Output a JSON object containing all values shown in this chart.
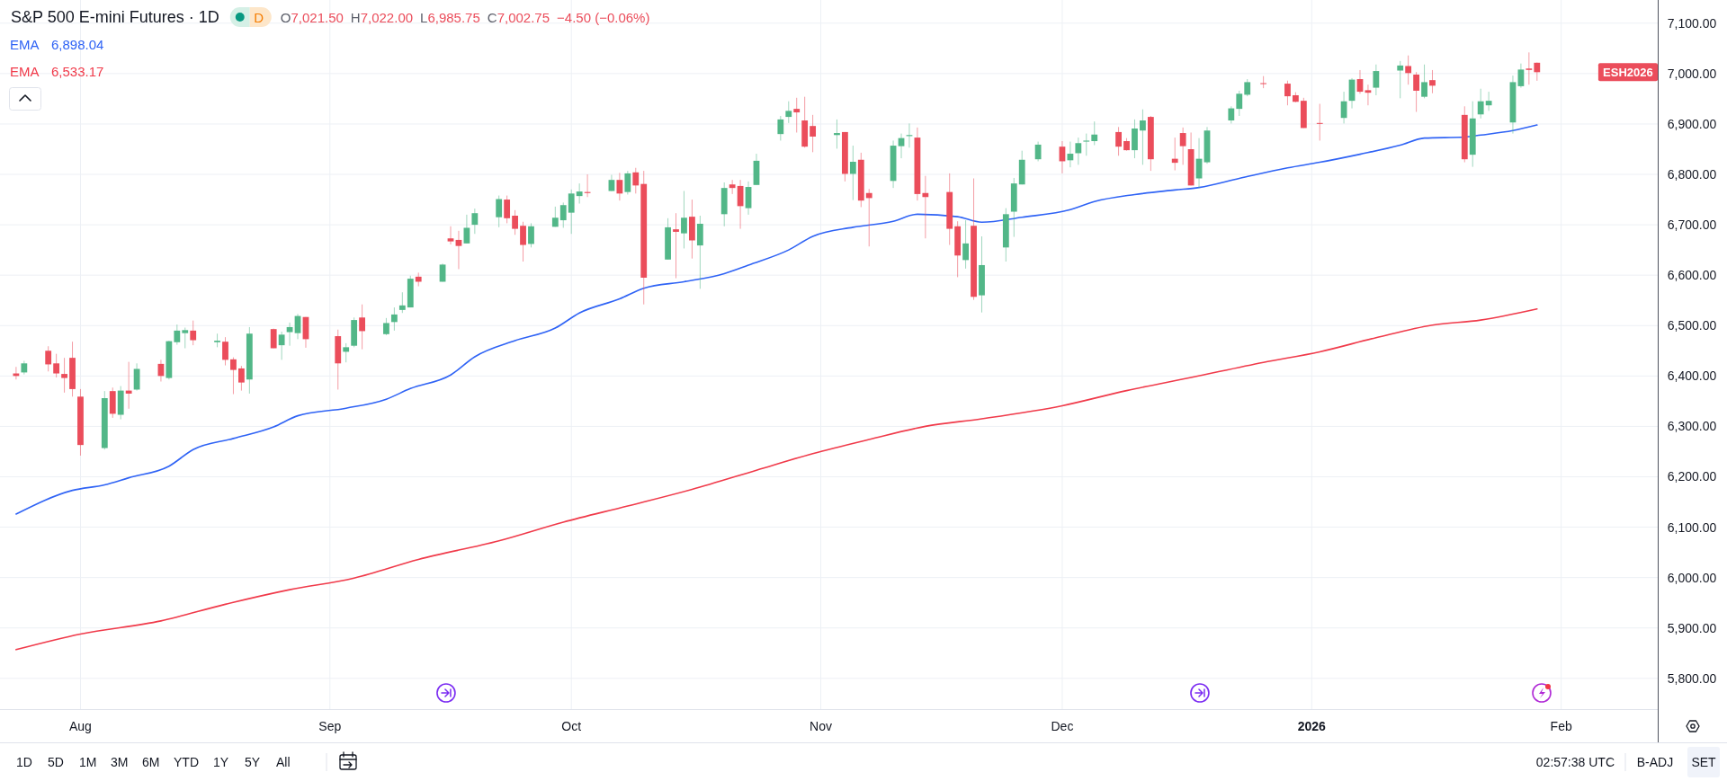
{
  "chart_data": {
    "type": "candlestick",
    "title": "S&P 500 E-mini Futures · 1D",
    "x": [
      "2025-07-24",
      "2025-07-25",
      "2025-07-28",
      "2025-07-29",
      "2025-07-30",
      "2025-07-31",
      "2025-08-01",
      "2025-08-04",
      "2025-08-05",
      "2025-08-06",
      "2025-08-07",
      "2025-08-08",
      "2025-08-11",
      "2025-08-12",
      "2025-08-13",
      "2025-08-14",
      "2025-08-15",
      "2025-08-18",
      "2025-08-19",
      "2025-08-20",
      "2025-08-21",
      "2025-08-22",
      "2025-08-25",
      "2025-08-26",
      "2025-08-27",
      "2025-08-28",
      "2025-08-29",
      "2025-09-02",
      "2025-09-03",
      "2025-09-04",
      "2025-09-05",
      "2025-09-08",
      "2025-09-09",
      "2025-09-10",
      "2025-09-11",
      "2025-09-12",
      "2025-09-15",
      "2025-09-16",
      "2025-09-17",
      "2025-09-18",
      "2025-09-19",
      "2025-09-22",
      "2025-09-23",
      "2025-09-24",
      "2025-09-25",
      "2025-09-26",
      "2025-09-29",
      "2025-09-30",
      "2025-10-01",
      "2025-10-02",
      "2025-10-03",
      "2025-10-06",
      "2025-10-07",
      "2025-10-08",
      "2025-10-09",
      "2025-10-10",
      "2025-10-13",
      "2025-10-14",
      "2025-10-15",
      "2025-10-16",
      "2025-10-17",
      "2025-10-20",
      "2025-10-21",
      "2025-10-22",
      "2025-10-23",
      "2025-10-24",
      "2025-10-27",
      "2025-10-28",
      "2025-10-29",
      "2025-10-30",
      "2025-10-31",
      "2025-11-03",
      "2025-11-04",
      "2025-11-05",
      "2025-11-06",
      "2025-11-07",
      "2025-11-10",
      "2025-11-11",
      "2025-11-12",
      "2025-11-13",
      "2025-11-14",
      "2025-11-17",
      "2025-11-18",
      "2025-11-19",
      "2025-11-20",
      "2025-11-21",
      "2025-11-24",
      "2025-11-25",
      "2025-11-26",
      "2025-11-28",
      "2025-12-01",
      "2025-12-02",
      "2025-12-03",
      "2025-12-04",
      "2025-12-05",
      "2025-12-08",
      "2025-12-09",
      "2025-12-10",
      "2025-12-11",
      "2025-12-12",
      "2025-12-15",
      "2025-12-16",
      "2025-12-17",
      "2025-12-18",
      "2025-12-19",
      "2025-12-22",
      "2025-12-23",
      "2025-12-24",
      "2025-12-26",
      "2025-12-29",
      "2025-12-30",
      "2025-12-31",
      "2026-01-02",
      "2026-01-05",
      "2026-01-06",
      "2026-01-07",
      "2026-01-08",
      "2026-01-09",
      "2026-01-12",
      "2026-01-13",
      "2026-01-14",
      "2026-01-15",
      "2026-01-16",
      "2026-01-20",
      "2026-01-21",
      "2026-01-22",
      "2026-01-23",
      "2026-01-26",
      "2026-01-27",
      "2026-01-28",
      "2026-01-29"
    ],
    "ohlc": [
      [
        6405,
        6418,
        6393,
        6400
      ],
      [
        6407,
        6430,
        6403,
        6425
      ],
      [
        6450,
        6459,
        6409,
        6423
      ],
      [
        6425,
        6444,
        6397,
        6405
      ],
      [
        6404,
        6436,
        6367,
        6396
      ],
      [
        6436,
        6468,
        6359,
        6374
      ],
      [
        6359,
        6374,
        6242,
        6263
      ],
      [
        6257,
        6370,
        6254,
        6356
      ],
      [
        6370,
        6377,
        6317,
        6325
      ],
      [
        6323,
        6380,
        6314,
        6371
      ],
      [
        6371,
        6428,
        6335,
        6365
      ],
      [
        6373,
        6425,
        6371,
        6414
      ],
      [
        6424,
        6432,
        6389,
        6400
      ],
      [
        6396,
        6470,
        6393,
        6469
      ],
      [
        6467,
        6502,
        6462,
        6490
      ],
      [
        6485,
        6496,
        6455,
        6491
      ],
      [
        6490,
        6510,
        6461,
        6471
      ],
      [
        6467,
        6484,
        6457,
        6470
      ],
      [
        6468,
        6477,
        6421,
        6432
      ],
      [
        6433,
        6437,
        6364,
        6412
      ],
      [
        6415,
        6420,
        6371,
        6387
      ],
      [
        6393,
        6497,
        6365,
        6484
      ],
      [
        6493,
        6494,
        6455,
        6455
      ],
      [
        6461,
        6488,
        6432,
        6482
      ],
      [
        6487,
        6506,
        6460,
        6497
      ],
      [
        6485,
        6523,
        6473,
        6519
      ],
      [
        6517,
        6517,
        6456,
        6473
      ],
      [
        6479,
        6492,
        6373,
        6425
      ],
      [
        6448,
        6465,
        6427,
        6457
      ],
      [
        6460,
        6516,
        6457,
        6511
      ],
      [
        6516,
        6542,
        6453,
        6489
      ],
      [
        6483,
        6515,
        6481,
        6505
      ],
      [
        6507,
        6536,
        6490,
        6522
      ],
      [
        6531,
        6566,
        6525,
        6540
      ],
      [
        6536,
        6599,
        6536,
        6593
      ],
      [
        6597,
        6605,
        6578,
        6587
      ],
      [
        6587,
        6623,
        6587,
        6621
      ],
      [
        6673,
        6697,
        6661,
        6667
      ],
      [
        6670,
        6688,
        6612,
        6658
      ],
      [
        6663,
        6720,
        6663,
        6694
      ],
      [
        6700,
        6732,
        6682,
        6723
      ],
      [
        6715,
        6758,
        6695,
        6751
      ],
      [
        6750,
        6758,
        6703,
        6713
      ],
      [
        6718,
        6729,
        6680,
        6692
      ],
      [
        6698,
        6706,
        6627,
        6660
      ],
      [
        6662,
        6703,
        6655,
        6697
      ],
      [
        6696,
        6736,
        6696,
        6714
      ],
      [
        6709,
        6744,
        6694,
        6739
      ],
      [
        6724,
        6770,
        6682,
        6762
      ],
      [
        6757,
        6782,
        6742,
        6766
      ],
      [
        6765,
        6800,
        6755,
        6763
      ],
      [
        6767,
        6799,
        6767,
        6789
      ],
      [
        6789,
        6803,
        6748,
        6762
      ],
      [
        6765,
        6807,
        6760,
        6802
      ],
      [
        6804,
        6813,
        6762,
        6778
      ],
      [
        6781,
        6807,
        6542,
        6595
      ],
      [
        6631,
        6713,
        6631,
        6695
      ],
      [
        6691,
        6723,
        6594,
        6686
      ],
      [
        6683,
        6767,
        6653,
        6714
      ],
      [
        6716,
        6750,
        6633,
        6669
      ],
      [
        6659,
        6718,
        6573,
        6702
      ],
      [
        6721,
        6784,
        6697,
        6773
      ],
      [
        6780,
        6789,
        6761,
        6773
      ],
      [
        6777,
        6789,
        6692,
        6737
      ],
      [
        6733,
        6786,
        6720,
        6775
      ],
      [
        6779,
        6841,
        6779,
        6827
      ],
      [
        6880,
        6916,
        6867,
        6909
      ],
      [
        6914,
        6945,
        6902,
        6926
      ],
      [
        6930,
        6952,
        6883,
        6923
      ],
      [
        6907,
        6954,
        6853,
        6855
      ],
      [
        6896,
        6918,
        6844,
        6875
      ],
      [
        6878,
        6909,
        6851,
        6882
      ],
      [
        6884,
        6884,
        6786,
        6801
      ],
      [
        6801,
        6857,
        6749,
        6825
      ],
      [
        6829,
        6843,
        6735,
        6748
      ],
      [
        6763,
        6771,
        6657,
        6753
      ],
      [
        6787,
        6867,
        6773,
        6857
      ],
      [
        6856,
        6881,
        6832,
        6872
      ],
      [
        6876,
        6901,
        6853,
        6878
      ],
      [
        6873,
        6893,
        6748,
        6761
      ],
      [
        6763,
        6797,
        6673,
        6755
      ],
      [
        6765,
        6802,
        6660,
        6692
      ],
      [
        6697,
        6707,
        6596,
        6639
      ],
      [
        6630,
        6709,
        6613,
        6663
      ],
      [
        6698,
        6792,
        6551,
        6557
      ],
      [
        6560,
        6677,
        6526,
        6620
      ],
      [
        6655,
        6733,
        6627,
        6721
      ],
      [
        6726,
        6793,
        6676,
        6782
      ],
      [
        6780,
        6847,
        6780,
        6829
      ],
      [
        6830,
        6865,
        6826,
        6859
      ],
      [
        6855,
        6866,
        6802,
        6826
      ],
      [
        6828,
        6865,
        6814,
        6841
      ],
      [
        6842,
        6873,
        6819,
        6862
      ],
      [
        6865,
        6881,
        6837,
        6867
      ],
      [
        6866,
        6905,
        6858,
        6879
      ],
      [
        6884,
        6894,
        6837,
        6855
      ],
      [
        6866,
        6872,
        6847,
        6848
      ],
      [
        6848,
        6909,
        6832,
        6891
      ],
      [
        6887,
        6929,
        6819,
        6907
      ],
      [
        6914,
        6916,
        6807,
        6830
      ],
      [
        6831,
        6873,
        6808,
        6823
      ],
      [
        6882,
        6893,
        6819,
        6856
      ],
      [
        6850,
        6883,
        6778,
        6778
      ],
      [
        6792,
        6872,
        6773,
        6831
      ],
      [
        6824,
        6894,
        6821,
        6887
      ],
      [
        6907,
        6935,
        6901,
        6931
      ],
      [
        6930,
        6966,
        6916,
        6960
      ],
      [
        6958,
        6989,
        6955,
        6983
      ],
      [
        6981,
        6995,
        6971,
        6980
      ],
      [
        6980,
        6986,
        6937,
        6955
      ],
      [
        6957,
        6963,
        6943,
        6944
      ],
      [
        6946,
        6952,
        6892,
        6892
      ],
      [
        6902,
        6940,
        6867,
        6901
      ],
      [
        6912,
        6964,
        6901,
        6945
      ],
      [
        6946,
        6991,
        6931,
        6988
      ],
      [
        6989,
        7007,
        6960,
        6964
      ],
      [
        6967,
        6978,
        6937,
        6962
      ],
      [
        6972,
        7018,
        6957,
        7005
      ],
      [
        7006,
        7025,
        6951,
        7016
      ],
      [
        7015,
        7036,
        6978,
        7001
      ],
      [
        6998,
        7003,
        6924,
        6966
      ],
      [
        6954,
        7018,
        6951,
        6983
      ],
      [
        6987,
        7007,
        6961,
        6976
      ],
      [
        6918,
        6935,
        6824,
        6830
      ],
      [
        6839,
        6945,
        6815,
        6911
      ],
      [
        6919,
        6970,
        6911,
        6945
      ],
      [
        6937,
        6964,
        6926,
        6946
      ],
      [
        6903,
        6996,
        6881,
        6983
      ],
      [
        6975,
        7020,
        6972,
        7008
      ],
      [
        7010,
        7042,
        6978,
        7007.25
      ],
      [
        7021.5,
        7022,
        6985.75,
        7002.75
      ]
    ],
    "colors": [
      "#eb4d5b",
      "#52b788",
      "#eb4d5b",
      "#eb4d5b",
      "#eb4d5b",
      "#eb4d5b",
      "#eb4d5b",
      "#52b788",
      "#eb4d5b",
      "#52b788",
      "#eb4d5b",
      "#52b788",
      "#eb4d5b",
      "#52b788",
      "#52b788",
      "#52b788",
      "#eb4d5b",
      "#52b788",
      "#eb4d5b",
      "#eb4d5b",
      "#eb4d5b",
      "#52b788",
      "#eb4d5b",
      "#52b788",
      "#52b788",
      "#52b788",
      "#eb4d5b",
      "#eb4d5b",
      "#52b788",
      "#52b788",
      "#eb4d5b",
      "#52b788",
      "#52b788",
      "#52b788",
      "#52b788",
      "#eb4d5b",
      "#52b788",
      "#eb4d5b",
      "#eb4d5b",
      "#52b788",
      "#52b788",
      "#52b788",
      "#eb4d5b",
      "#eb4d5b",
      "#eb4d5b",
      "#52b788",
      "#52b788",
      "#52b788",
      "#52b788",
      "#52b788",
      "#eb4d5b",
      "#52b788",
      "#eb4d5b",
      "#52b788",
      "#eb4d5b",
      "#eb4d5b",
      "#52b788",
      "#eb4d5b",
      "#52b788",
      "#eb4d5b",
      "#52b788",
      "#52b788",
      "#eb4d5b",
      "#eb4d5b",
      "#52b788",
      "#52b788",
      "#52b788",
      "#52b788",
      "#eb4d5b",
      "#eb4d5b",
      "#eb4d5b",
      "#52b788",
      "#eb4d5b",
      "#52b788",
      "#eb4d5b",
      "#eb4d5b",
      "#52b788",
      "#52b788",
      "#52b788",
      "#eb4d5b",
      "#eb4d5b",
      "#eb4d5b",
      "#eb4d5b",
      "#52b788",
      "#eb4d5b",
      "#52b788",
      "#52b788",
      "#52b788",
      "#52b788",
      "#52b788",
      "#eb4d5b",
      "#52b788",
      "#52b788",
      "#52b788",
      "#52b788",
      "#eb4d5b",
      "#eb4d5b",
      "#52b788",
      "#52b788",
      "#eb4d5b",
      "#eb4d5b",
      "#eb4d5b",
      "#eb4d5b",
      "#52b788",
      "#52b788",
      "#52b788",
      "#52b788",
      "#52b788",
      "#eb4d5b",
      "#eb4d5b",
      "#eb4d5b",
      "#eb4d5b",
      "#eb4d5b",
      "#52b788",
      "#52b788",
      "#eb4d5b",
      "#eb4d5b",
      "#52b788",
      "#52b788",
      "#eb4d5b",
      "#eb4d5b",
      "#52b788",
      "#eb4d5b",
      "#eb4d5b",
      "#52b788",
      "#52b788",
      "#52b788",
      "#52b788",
      "#52b788",
      "#eb4d5b",
      "#eb4d5b"
    ],
    "series": [
      {
        "type": "line",
        "name": "EMA",
        "color": "#2f63f5",
        "x": [
          "2025-07-24",
          "2025-07-31",
          "2025-08-04",
          "2025-08-07",
          "2025-08-12",
          "2025-08-15",
          "2025-08-20",
          "2025-08-25",
          "2025-08-28",
          "2025-09-03",
          "2025-09-08",
          "2025-09-11",
          "2025-09-16",
          "2025-09-19",
          "2025-09-24",
          "2025-09-29",
          "2025-10-02",
          "2025-10-07",
          "2025-10-10",
          "2025-10-15",
          "2025-10-20",
          "2025-10-23",
          "2025-10-28",
          "2025-10-31",
          "2025-11-05",
          "2025-11-10",
          "2025-11-13",
          "2025-11-18",
          "2025-11-21",
          "2025-11-26",
          "2025-12-02",
          "2025-12-05",
          "2025-12-10",
          "2025-12-15",
          "2025-12-18",
          "2025-12-23",
          "2025-12-29",
          "2026-01-02",
          "2026-01-07",
          "2026-01-12",
          "2026-01-15",
          "2026-01-20",
          "2026-01-22",
          "2026-01-26",
          "2026-01-29"
        ],
        "values": [
          6126,
          6173,
          6184,
          6198,
          6221,
          6254,
          6276,
          6299,
          6321,
          6336,
          6354,
          6375,
          6402,
          6438,
          6470,
          6495,
          6525,
          6553,
          6574,
          6587,
          6603,
          6620,
          6650,
          6677,
          6695,
          6707,
          6721,
          6716,
          6705,
          6715,
          6730,
          6746,
          6760,
          6769,
          6774,
          6792,
          6813,
          6824,
          6840,
          6858,
          6872,
          6874,
          6878,
          6887,
          6898
        ]
      },
      {
        "type": "line",
        "name": "EMA",
        "color": "#f03a4a",
        "x": [
          "2025-07-24",
          "2025-08-01",
          "2025-08-11",
          "2025-08-19",
          "2025-08-27",
          "2025-09-04",
          "2025-09-12",
          "2025-09-22",
          "2025-09-30",
          "2025-10-08",
          "2025-10-16",
          "2025-10-24",
          "2025-10-31",
          "2025-11-07",
          "2025-11-14",
          "2025-11-21",
          "2025-12-01",
          "2025-12-09",
          "2025-12-17",
          "2025-12-26",
          "2026-01-02",
          "2026-01-09",
          "2026-01-16",
          "2026-01-22",
          "2026-01-29"
        ],
        "values": [
          5857,
          5888,
          5914,
          5947,
          5976,
          5999,
          6036,
          6073,
          6110,
          6142,
          6175,
          6213,
          6246,
          6274,
          6300,
          6315,
          6341,
          6371,
          6397,
          6427,
          6448,
          6476,
          6501,
          6511,
          6533
        ]
      }
    ],
    "xlim": [
      "2025-07-22",
      "2026-02-13"
    ],
    "xticks": [
      {
        "value": "2025-08-01",
        "label": "Aug"
      },
      {
        "value": "2025-09-01",
        "label": "Sep"
      },
      {
        "value": "2025-10-01",
        "label": "Oct"
      },
      {
        "value": "2025-11-01",
        "label": "Nov"
      },
      {
        "value": "2025-12-01",
        "label": "Dec"
      },
      {
        "value": "2026-01-01",
        "label": "2026"
      },
      {
        "value": "2026-02-01",
        "label": "Feb"
      }
    ],
    "ylim": [
      5739,
      7146
    ],
    "yticks": [
      {
        "value": 5800,
        "label": "5,800.00"
      },
      {
        "value": 5900,
        "label": "5,900.00"
      },
      {
        "value": 6000,
        "label": "6,000.00"
      },
      {
        "value": 6100,
        "label": "6,100.00"
      },
      {
        "value": 6200,
        "label": "6,200.00"
      },
      {
        "value": 6300,
        "label": "6,300.00"
      },
      {
        "value": 6400,
        "label": "6,400.00"
      },
      {
        "value": 6500,
        "label": "6,500.00"
      },
      {
        "value": 6600,
        "label": "6,600.00"
      },
      {
        "value": 6700,
        "label": "6,700.00"
      },
      {
        "value": 6800,
        "label": "6,800.00"
      },
      {
        "value": 6900,
        "label": "6,900.00"
      },
      {
        "value": 7000,
        "label": "7,000.00"
      },
      {
        "value": 7100,
        "label": "7,100.00"
      }
    ],
    "grid": true,
    "legend": "top left",
    "annotations": [
      "D",
      "O7,021.50",
      "H7,022.00",
      "L6,985.75",
      "C7,002.75",
      "−4.50 (−0.06%)",
      "6,898.04",
      "6,533.17",
      "ESH2026",
      "1D",
      "5D",
      "1M",
      "3M",
      "6M",
      "YTD",
      "1Y",
      "5Y",
      "All",
      "02:57:38 UTC",
      "B-ADJ",
      "SET"
    ]
  }
}
